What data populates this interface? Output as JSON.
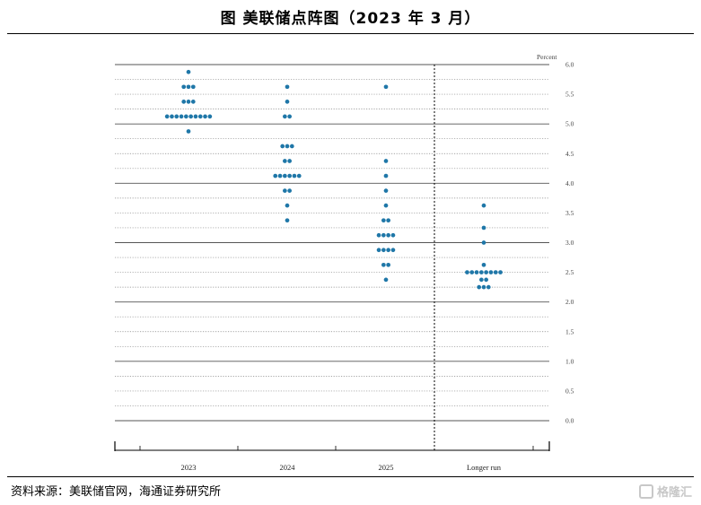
{
  "header": {
    "title": "图  美联储点阵图（2023 年 3 月）"
  },
  "footer": {
    "source": "资料来源：美联储官网，海通证券研究所",
    "watermark": "格隆汇"
  },
  "chart_data": {
    "type": "scatter",
    "ylabel": "Percent",
    "ylim": [
      0,
      6
    ],
    "yticks": [
      "0.0",
      "0.5",
      "1.0",
      "1.5",
      "2.0",
      "2.5",
      "3.0",
      "3.5",
      "4.0",
      "4.5",
      "5.0",
      "5.5",
      "6.0"
    ],
    "categories": [
      "2023",
      "2024",
      "2025",
      "Longer run"
    ],
    "series": [
      {
        "category": "2023",
        "points": [
          {
            "y": 5.875,
            "count": 1
          },
          {
            "y": 5.625,
            "count": 3
          },
          {
            "y": 5.375,
            "count": 3
          },
          {
            "y": 5.125,
            "count": 10
          },
          {
            "y": 4.875,
            "count": 1
          }
        ]
      },
      {
        "category": "2024",
        "points": [
          {
            "y": 5.625,
            "count": 1
          },
          {
            "y": 5.375,
            "count": 1
          },
          {
            "y": 5.125,
            "count": 2
          },
          {
            "y": 4.625,
            "count": 3
          },
          {
            "y": 4.375,
            "count": 2
          },
          {
            "y": 4.125,
            "count": 6
          },
          {
            "y": 3.875,
            "count": 2
          },
          {
            "y": 3.625,
            "count": 1
          },
          {
            "y": 3.375,
            "count": 1
          }
        ]
      },
      {
        "category": "2025",
        "points": [
          {
            "y": 5.625,
            "count": 1
          },
          {
            "y": 4.375,
            "count": 1
          },
          {
            "y": 4.125,
            "count": 1
          },
          {
            "y": 3.875,
            "count": 1
          },
          {
            "y": 3.625,
            "count": 1
          },
          {
            "y": 3.375,
            "count": 2
          },
          {
            "y": 3.125,
            "count": 4
          },
          {
            "y": 2.875,
            "count": 4
          },
          {
            "y": 2.625,
            "count": 2
          },
          {
            "y": 2.375,
            "count": 1
          }
        ]
      },
      {
        "category": "Longer run",
        "points": [
          {
            "y": 3.625,
            "count": 1
          },
          {
            "y": 3.25,
            "count": 1
          },
          {
            "y": 3.0,
            "count": 1
          },
          {
            "y": 2.625,
            "count": 1
          },
          {
            "y": 2.5,
            "count": 8
          },
          {
            "y": 2.375,
            "count": 2
          },
          {
            "y": 2.25,
            "count": 3
          }
        ]
      }
    ],
    "colors": {
      "dot": "#1f77a8",
      "grid": "#555555"
    },
    "grid": true
  }
}
